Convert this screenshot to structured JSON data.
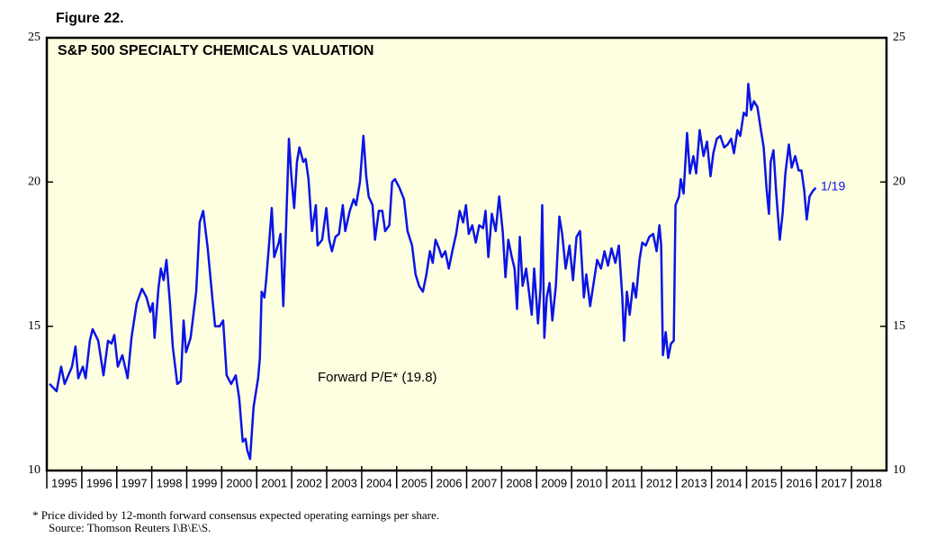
{
  "chart_data": {
    "type": "line",
    "figure_label": "Figure 22.",
    "title": "S&P 500 SPECIALTY CHEMICALS VALUATION",
    "annotation": "Forward P/E* (19.8)",
    "end_label": "1/19",
    "notes": [
      "*  Price divided by 12-month forward consensus expected operating earnings per share.",
      "Source: Thomson Reuters I\\B\\E\\S."
    ],
    "xlim": [
      1995,
      2019
    ],
    "xticks": [
      1995,
      1996,
      1997,
      1998,
      1999,
      2000,
      2001,
      2002,
      2003,
      2004,
      2005,
      2006,
      2007,
      2008,
      2009,
      2010,
      2011,
      2012,
      2013,
      2014,
      2015,
      2016,
      2017,
      2018
    ],
    "ylim": [
      10,
      25
    ],
    "yticks": [
      10,
      15,
      20,
      25
    ],
    "background": "#fefee0",
    "x": [
      1995.08,
      1995.28,
      1995.41,
      1995.51,
      1995.72,
      1995.82,
      1995.9,
      1996.03,
      1996.11,
      1996.23,
      1996.31,
      1996.47,
      1996.62,
      1996.75,
      1996.85,
      1996.93,
      1997.03,
      1997.16,
      1997.31,
      1997.42,
      1997.57,
      1997.72,
      1997.85,
      1997.96,
      1998.03,
      1998.08,
      1998.19,
      1998.26,
      1998.34,
      1998.42,
      1998.52,
      1998.6,
      1998.73,
      1998.83,
      1998.91,
      1998.98,
      1999.11,
      1999.27,
      1999.37,
      1999.47,
      1999.6,
      1999.73,
      1999.81,
      1999.94,
      2000.04,
      2000.14,
      2000.27,
      2000.4,
      2000.5,
      2000.6,
      2000.68,
      2000.73,
      2000.81,
      2000.91,
      2001.04,
      2001.09,
      2001.14,
      2001.22,
      2001.27,
      2001.35,
      2001.43,
      2001.5,
      2001.63,
      2001.68,
      2001.76,
      2001.84,
      2001.92,
      2001.99,
      2002.07,
      2002.15,
      2002.22,
      2002.33,
      2002.4,
      2002.48,
      2002.58,
      2002.69,
      2002.74,
      2002.87,
      2002.99,
      2003.07,
      2003.15,
      2003.25,
      2003.35,
      2003.46,
      2003.53,
      2003.66,
      2003.77,
      2003.84,
      2003.95,
      2004.05,
      2004.13,
      2004.2,
      2004.31,
      2004.38,
      2004.49,
      2004.59,
      2004.67,
      2004.79,
      2004.87,
      2004.95,
      2005.08,
      2005.21,
      2005.31,
      2005.44,
      2005.54,
      2005.64,
      2005.75,
      2005.85,
      2005.95,
      2006.03,
      2006.11,
      2006.21,
      2006.29,
      2006.39,
      2006.49,
      2006.59,
      2006.7,
      2006.8,
      2006.9,
      2006.98,
      2007.06,
      2007.16,
      2007.26,
      2007.36,
      2007.47,
      2007.54,
      2007.62,
      2007.72,
      2007.83,
      2007.93,
      2008.03,
      2008.11,
      2008.19,
      2008.29,
      2008.37,
      2008.44,
      2008.52,
      2008.6,
      2008.7,
      2008.78,
      2008.86,
      2008.93,
      2009.04,
      2009.11,
      2009.16,
      2009.22,
      2009.29,
      2009.37,
      2009.45,
      2009.55,
      2009.65,
      2009.73,
      2009.83,
      2009.94,
      2010.04,
      2010.14,
      2010.24,
      2010.35,
      2010.42,
      2010.53,
      2010.63,
      2010.73,
      2010.84,
      2010.94,
      2011.04,
      2011.14,
      2011.25,
      2011.35,
      2011.45,
      2011.5,
      2011.58,
      2011.66,
      2011.76,
      2011.84,
      2011.94,
      2012.02,
      2012.12,
      2012.22,
      2012.33,
      2012.43,
      2012.51,
      2012.56,
      2012.61,
      2012.69,
      2012.76,
      2012.84,
      2012.92,
      2012.97,
      2013.07,
      2013.12,
      2013.2,
      2013.3,
      2013.38,
      2013.48,
      2013.56,
      2013.66,
      2013.77,
      2013.87,
      2013.97,
      2014.05,
      2014.15,
      2014.25,
      2014.36,
      2014.46,
      2014.56,
      2014.64,
      2014.74,
      2014.82,
      2014.92,
      2015.0,
      2015.05,
      2015.13,
      2015.21,
      2015.31,
      2015.41,
      2015.49,
      2015.57,
      2015.64,
      2015.69,
      2015.77,
      2015.85,
      2015.95,
      2016.03,
      2016.11,
      2016.21,
      2016.29,
      2016.39,
      2016.49,
      2016.57,
      2016.65,
      2016.72,
      2016.8,
      2016.9,
      2016.98
    ],
    "series": [
      {
        "name": "Forward P/E",
        "color": "#0a14e6",
        "values": [
          13.0,
          12.75,
          13.6,
          13.0,
          13.6,
          14.3,
          13.2,
          13.6,
          13.2,
          14.5,
          14.9,
          14.5,
          13.3,
          14.5,
          14.4,
          14.7,
          13.6,
          14.0,
          13.2,
          14.6,
          15.8,
          16.3,
          16.0,
          15.5,
          15.8,
          14.6,
          16.3,
          17.0,
          16.6,
          17.3,
          15.8,
          14.3,
          13.0,
          13.1,
          15.2,
          14.1,
          14.6,
          16.2,
          18.6,
          19.0,
          17.7,
          16.0,
          15.0,
          15.0,
          15.2,
          13.3,
          13.0,
          13.3,
          12.5,
          11.0,
          11.1,
          10.7,
          10.4,
          12.2,
          13.2,
          13.9,
          16.2,
          16.0,
          16.6,
          17.8,
          19.1,
          17.4,
          17.9,
          18.2,
          15.7,
          18.5,
          21.5,
          20.2,
          19.1,
          20.7,
          21.2,
          20.7,
          20.8,
          20.1,
          18.3,
          19.2,
          17.8,
          18.0,
          19.1,
          18.0,
          17.6,
          18.1,
          18.2,
          19.2,
          18.3,
          19.0,
          19.4,
          19.2,
          20.0,
          21.6,
          20.2,
          19.5,
          19.2,
          18.0,
          19.0,
          19.0,
          18.3,
          18.5,
          20.0,
          20.1,
          19.8,
          19.4,
          18.3,
          17.8,
          16.8,
          16.4,
          16.2,
          16.8,
          17.6,
          17.2,
          18.0,
          17.7,
          17.4,
          17.6,
          17.0,
          17.6,
          18.2,
          19.0,
          18.6,
          19.2,
          18.2,
          18.5,
          17.9,
          18.5,
          18.4,
          19.0,
          17.4,
          18.9,
          18.3,
          19.5,
          18.3,
          16.7,
          18.0,
          17.4,
          17.0,
          15.6,
          18.1,
          16.4,
          17.0,
          16.2,
          15.4,
          17.0,
          15.1,
          16.3,
          19.2,
          14.6,
          16.0,
          16.5,
          15.2,
          16.4,
          18.8,
          18.2,
          17.0,
          17.8,
          16.6,
          18.1,
          18.3,
          16.0,
          16.8,
          15.7,
          16.5,
          17.3,
          17.0,
          17.6,
          17.1,
          17.7,
          17.2,
          17.8,
          16.0,
          14.5,
          16.2,
          15.4,
          16.5,
          16.0,
          17.3,
          17.9,
          17.8,
          18.1,
          18.2,
          17.6,
          18.5,
          17.8,
          14.0,
          14.8,
          13.9,
          14.4,
          14.5,
          19.2,
          19.5,
          20.1,
          19.6,
          21.7,
          20.3,
          20.9,
          20.3,
          21.8,
          20.9,
          21.4,
          20.2,
          21.0,
          21.5,
          21.6,
          21.2,
          21.3,
          21.5,
          21.0,
          21.8,
          21.6,
          22.4,
          22.3,
          23.4,
          22.5,
          22.8,
          22.6,
          21.8,
          21.2,
          19.8,
          18.9,
          20.7,
          21.1,
          19.6,
          18.0,
          18.9,
          20.3,
          21.3,
          20.5,
          20.9,
          20.4,
          20.4,
          19.7,
          18.7,
          19.5,
          19.7,
          19.8
        ]
      }
    ]
  }
}
